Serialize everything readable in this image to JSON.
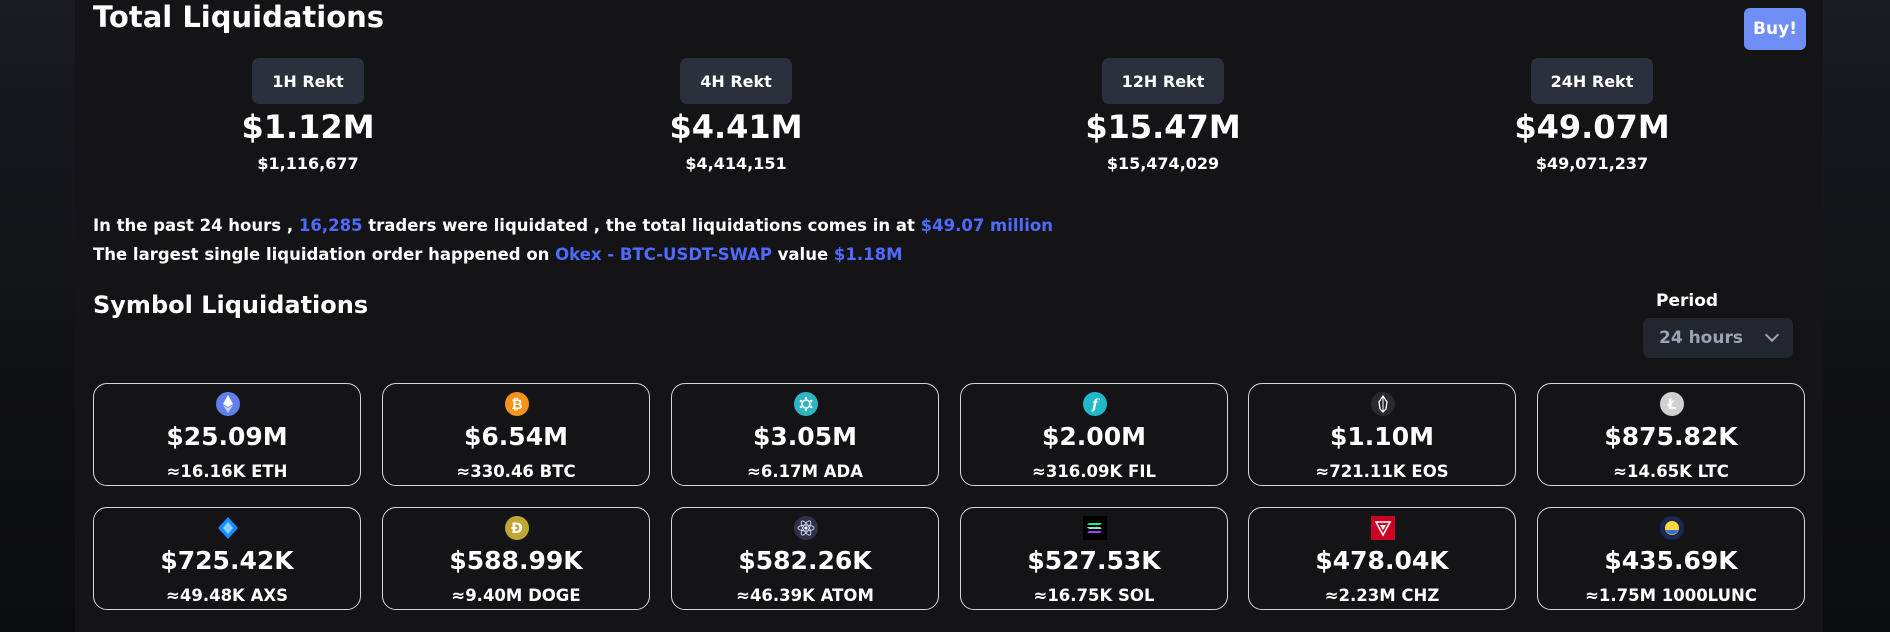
{
  "header": {
    "title": "Total Liquidations",
    "buy_label": "Buy!"
  },
  "rekt": [
    {
      "label": "1H Rekt",
      "value": "$1.12M",
      "exact": "$1,116,677"
    },
    {
      "label": "4H Rekt",
      "value": "$4.41M",
      "exact": "$4,414,151"
    },
    {
      "label": "12H Rekt",
      "value": "$15.47M",
      "exact": "$15,474,029"
    },
    {
      "label": "24H Rekt",
      "value": "$49.07M",
      "exact": "$49,071,237"
    }
  ],
  "summary": {
    "l1_a": "In the past 24 hours , ",
    "l1_traders": "16,285",
    "l1_b": " traders were liquidated , the total liquidations comes in at ",
    "l1_total": "$49.07 million",
    "l2_a": "The largest single liquidation order happened on ",
    "l2_pair": "Okex - BTC-USDT-SWAP",
    "l2_b": " value ",
    "l2_value": "$1.18M"
  },
  "symbols": {
    "title": "Symbol Liquidations",
    "period_label": "Period",
    "period_value": "24 hours",
    "cards": [
      {
        "icon": "ethereum-icon",
        "amount": "$25.09M",
        "qty": "≈16.16K ETH"
      },
      {
        "icon": "bitcoin-icon",
        "amount": "$6.54M",
        "qty": "≈330.46 BTC"
      },
      {
        "icon": "cardano-icon",
        "amount": "$3.05M",
        "qty": "≈6.17M ADA"
      },
      {
        "icon": "filecoin-icon",
        "amount": "$2.00M",
        "qty": "≈316.09K FIL"
      },
      {
        "icon": "eos-icon",
        "amount": "$1.10M",
        "qty": "≈721.11K EOS"
      },
      {
        "icon": "litecoin-icon",
        "amount": "$875.82K",
        "qty": "≈14.65K LTC"
      },
      {
        "icon": "axie-icon",
        "amount": "$725.42K",
        "qty": "≈49.48K AXS"
      },
      {
        "icon": "dogecoin-icon",
        "amount": "$588.99K",
        "qty": "≈9.40M DOGE"
      },
      {
        "icon": "cosmos-icon",
        "amount": "$582.26K",
        "qty": "≈46.39K ATOM"
      },
      {
        "icon": "solana-icon",
        "amount": "$527.53K",
        "qty": "≈16.75K SOL"
      },
      {
        "icon": "chiliz-icon",
        "amount": "$478.04K",
        "qty": "≈2.23M CHZ"
      },
      {
        "icon": "terra-luna-icon",
        "amount": "$435.69K",
        "qty": "≈1.75M 1000LUNC"
      }
    ]
  }
}
